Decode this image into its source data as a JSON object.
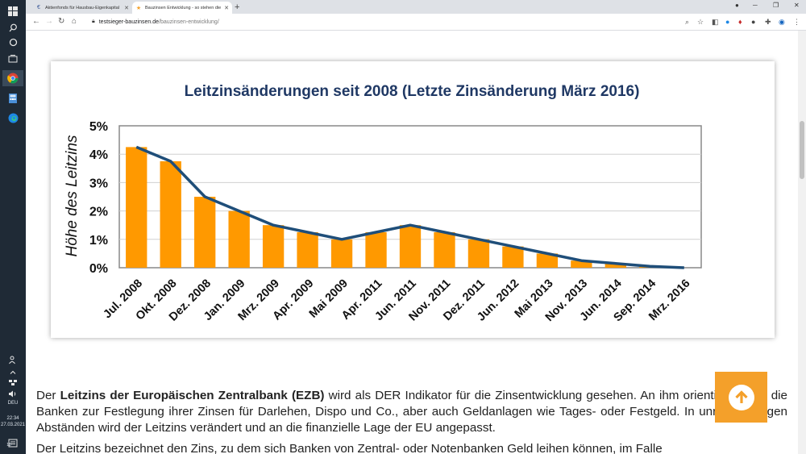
{
  "browser": {
    "tabs": [
      {
        "title": "Aktienfonds für Hausbau-Eigenkapital",
        "icon": "euro-favicon",
        "active": false
      },
      {
        "title": "Bauzinsen Entwicklung - so stehen die",
        "icon": "star-favicon",
        "active": true
      }
    ],
    "url_host": "testsieger-bauzinsen.de",
    "url_path": "/bauzinsen-entwicklung/"
  },
  "taskbar": {
    "language": "DEU",
    "time": "22:34",
    "date": "27.03.2021",
    "notification_count": "18"
  },
  "chart_data": {
    "type": "bar",
    "title": "Leitzinsänderungen seit 2008 (Letzte Zinsänderung März 2016)",
    "ylabel": "Höhe des Leitzins",
    "xlabel": "",
    "categories": [
      "Jul. 2008",
      "Okt. 2008",
      "Dez. 2008",
      "Jan. 2009",
      "Mrz. 2009",
      "Apr. 2009",
      "Mai 2009",
      "Apr. 2011",
      "Jun. 2011",
      "Nov. 2011",
      "Dez. 2011",
      "Jun. 2012",
      "Mai 2013",
      "Nov. 2013",
      "Jun. 2014",
      "Sep. 2014",
      "Mrz. 2016"
    ],
    "values": [
      4.25,
      3.75,
      2.5,
      2.0,
      1.5,
      1.25,
      1.0,
      1.25,
      1.5,
      1.25,
      1.0,
      0.75,
      0.5,
      0.25,
      0.15,
      0.05,
      0.0
    ],
    "line_values": [
      4.25,
      3.75,
      2.5,
      2.0,
      1.5,
      1.25,
      1.0,
      1.25,
      1.5,
      1.25,
      1.0,
      0.75,
      0.5,
      0.25,
      0.15,
      0.05,
      0.0
    ],
    "yticks": [
      "0%",
      "1%",
      "2%",
      "3%",
      "4%",
      "5%"
    ],
    "ylim": [
      0,
      5
    ],
    "bar_color": "#ff9900",
    "line_color": "#1f4e79",
    "grid": true
  },
  "article": {
    "p1_pre": "Der ",
    "p1_bold": "Leitzins der Europäischen Zentralbank (EZB)",
    "p1_post": " wird als DER Indikator für die Zinsentwicklung gesehen. An ihm orientieren sich die Banken zur Festlegung ihrer Zinsen für Darlehen, Dispo und Co., aber auch Geldanlagen wie Tages- oder Festgeld. In unregelmäßigen Abständen wird der Leitzins verändert und an die finanzielle Lage der EU angepasst.",
    "p2": "Der Leitzins bezeichnet den Zins, zu dem sich Banken von Zentral- oder Notenbanken Geld leihen können, im Falle"
  },
  "colors": {
    "accent": "#f4a02a",
    "title": "#1f3864"
  }
}
